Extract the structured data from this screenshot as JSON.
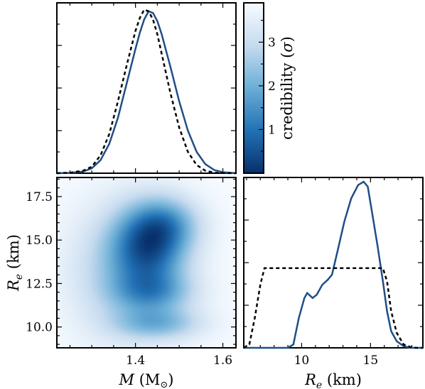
{
  "chart_data": [
    {
      "panel": "top-left",
      "type": "line",
      "xlim": [
        1.22,
        1.63
      ],
      "x": [
        1.22,
        1.25,
        1.28,
        1.3,
        1.32,
        1.34,
        1.36,
        1.38,
        1.4,
        1.41,
        1.42,
        1.43,
        1.44,
        1.45,
        1.46,
        1.48,
        1.5,
        1.52,
        1.54,
        1.56,
        1.58,
        1.6,
        1.63
      ],
      "series": [
        {
          "style": "solid",
          "color": "#1f4e85",
          "values": [
            0.0,
            0.002,
            0.01,
            0.03,
            0.08,
            0.18,
            0.34,
            0.55,
            0.76,
            0.86,
            0.94,
            0.99,
            0.98,
            0.93,
            0.85,
            0.65,
            0.44,
            0.26,
            0.13,
            0.055,
            0.02,
            0.006,
            0.0
          ]
        },
        {
          "style": "dashed",
          "color": "#000000",
          "values": [
            0.0,
            0.003,
            0.015,
            0.04,
            0.11,
            0.24,
            0.44,
            0.66,
            0.87,
            0.95,
            1.0,
            0.99,
            0.94,
            0.85,
            0.73,
            0.49,
            0.28,
            0.13,
            0.05,
            0.015,
            0.004,
            0.001,
            0.0
          ]
        }
      ]
    },
    {
      "panel": "bottom-right",
      "type": "line",
      "xlabel_var": "R",
      "xlabel_sub": "e",
      "xlabel_unit": " (km)",
      "xlim": [
        5.8,
        18.8
      ],
      "xticks": [
        10,
        15
      ],
      "xminor": [
        6,
        7,
        8,
        9,
        11,
        12,
        13,
        14,
        16,
        17,
        18
      ],
      "x": [
        5.8,
        6.2,
        6.6,
        7.0,
        7.3,
        8.0,
        9.0,
        9.4,
        9.8,
        10.2,
        10.4,
        10.8,
        11.1,
        11.5,
        11.9,
        12.2,
        12.6,
        13.1,
        13.6,
        14.1,
        14.5,
        14.8,
        15.1,
        15.5,
        15.9,
        16.2,
        16.5,
        16.9,
        17.4,
        17.9,
        18.3,
        18.8
      ],
      "series": [
        {
          "style": "solid",
          "color": "#1f4e85",
          "values": [
            0,
            0,
            0,
            0,
            0,
            0,
            0,
            0.02,
            0.18,
            0.3,
            0.33,
            0.3,
            0.32,
            0.38,
            0.41,
            0.44,
            0.58,
            0.76,
            0.9,
            0.98,
            1.0,
            0.97,
            0.82,
            0.62,
            0.4,
            0.22,
            0.1,
            0.04,
            0.01,
            0,
            0,
            0
          ]
        },
        {
          "style": "dashed",
          "color": "#000000",
          "values": [
            0,
            0.02,
            0.18,
            0.38,
            0.48,
            0.48,
            0.48,
            0.48,
            0.48,
            0.48,
            0.48,
            0.48,
            0.48,
            0.48,
            0.48,
            0.48,
            0.48,
            0.48,
            0.48,
            0.48,
            0.48,
            0.48,
            0.48,
            0.48,
            0.48,
            0.4,
            0.22,
            0.09,
            0.02,
            0.005,
            0,
            0
          ]
        }
      ]
    },
    {
      "panel": "bottom-left",
      "type": "heatmap",
      "xlabel_var": "M",
      "xlabel_unit": " (M",
      "xlabel_close": ")",
      "ylabel_var": "R",
      "ylabel_sub": "e",
      "ylabel_unit": " (km)",
      "xlim": [
        1.22,
        1.63
      ],
      "ylim": [
        8.8,
        18.6
      ],
      "xticks": [
        1.4,
        1.6
      ],
      "xticklabels": [
        "1.4",
        "1.6"
      ],
      "xminor": [
        1.25,
        1.3,
        1.35,
        1.45,
        1.5,
        1.55
      ],
      "yticks": [
        10.0,
        12.5,
        15.0,
        17.5
      ],
      "yticklabels": [
        "10.0",
        "12.5",
        "15.0",
        "17.5"
      ],
      "yminor": [
        9.0,
        9.5,
        10.5,
        11.0,
        11.5,
        12.0,
        13.0,
        13.5,
        14.0,
        14.5,
        15.5,
        16.0,
        16.5,
        17.0,
        18.0,
        18.5
      ],
      "blobs": [
        {
          "mx": 1.43,
          "my": 14.6,
          "sx": 0.055,
          "sy": 1.5,
          "w": 1.0
        },
        {
          "mx": 1.47,
          "my": 15.9,
          "sx": 0.05,
          "sy": 1.0,
          "w": 0.55
        },
        {
          "mx": 1.44,
          "my": 12.0,
          "sx": 0.06,
          "sy": 0.8,
          "w": 0.55
        },
        {
          "mx": 1.45,
          "my": 10.2,
          "sx": 0.065,
          "sy": 0.6,
          "w": 0.5
        },
        {
          "mx": 1.38,
          "my": 13.2,
          "sx": 0.08,
          "sy": 2.4,
          "w": 0.4
        }
      ]
    },
    {
      "panel": "colorbar",
      "type": "colorbar",
      "label_text": "credibility (",
      "label_sym": "σ",
      "label_close": ")",
      "range": [
        0,
        3.9
      ],
      "ticks": [
        1,
        2,
        3
      ],
      "ticklabels": [
        "1",
        "2",
        "3"
      ],
      "minor": [
        0.5,
        1.5,
        2.5,
        3.5
      ],
      "color_low": "#08306b",
      "color_high": "#f7fbff"
    }
  ]
}
